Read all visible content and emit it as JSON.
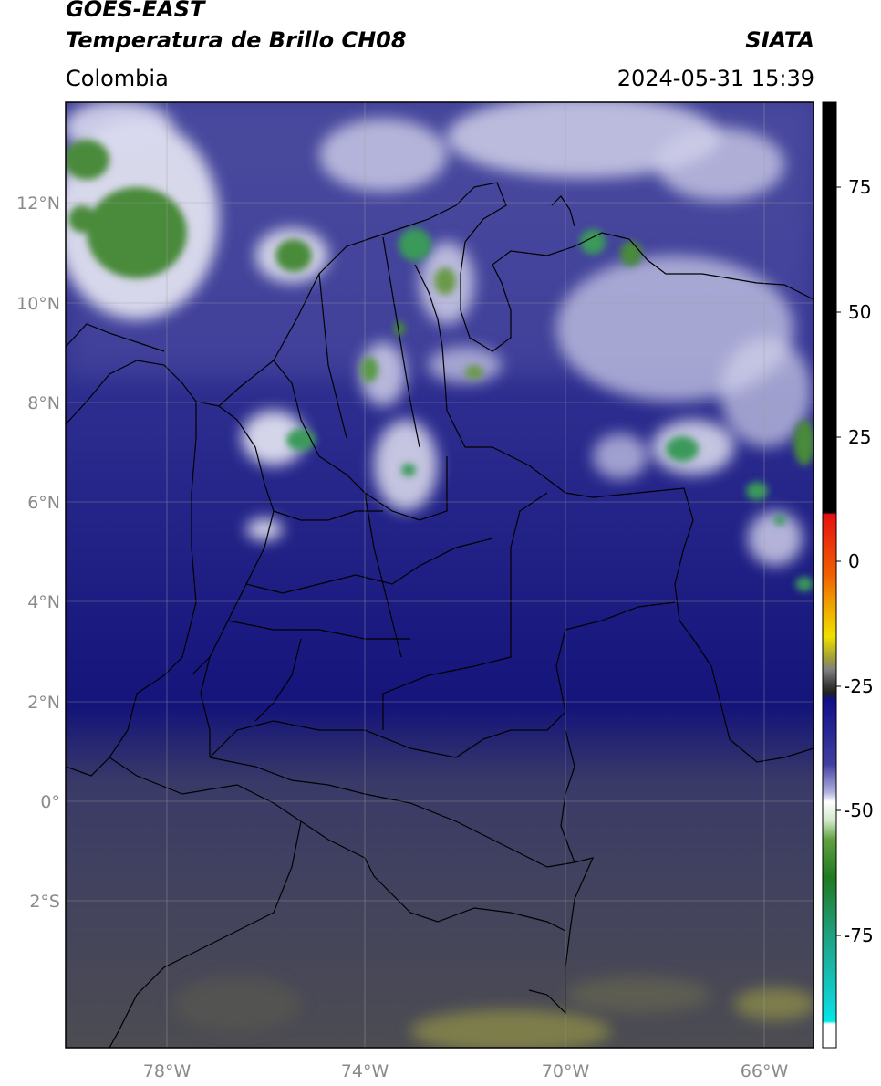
{
  "header": {
    "satellite": "GOES-EAST",
    "product": "Temperatura de Brillo CH08",
    "region": "Colombia",
    "agency": "SIATA",
    "datetime": "2024-05-31 15:39"
  },
  "map": {
    "lon_range": [
      -80,
      -64.8
    ],
    "lat_range": [
      -4.2,
      14.2
    ],
    "lon_ticks": [
      {
        "value": -78,
        "label": "78°W"
      },
      {
        "value": -74,
        "label": "74°W"
      },
      {
        "value": -70,
        "label": "70°W"
      },
      {
        "value": -66,
        "label": "66°W"
      }
    ],
    "lat_ticks": [
      {
        "value": 12,
        "label": "12°N"
      },
      {
        "value": 10,
        "label": "10°N"
      },
      {
        "value": 8,
        "label": "8°N"
      },
      {
        "value": 6,
        "label": "6°N"
      },
      {
        "value": 4,
        "label": "4°N"
      },
      {
        "value": 2,
        "label": "2°N"
      },
      {
        "value": 0,
        "label": "0°"
      },
      {
        "value": -2,
        "label": "2°S"
      }
    ]
  },
  "colorbar": {
    "range": [
      -100,
      90
    ],
    "ticks": [
      {
        "value": 75,
        "label": "75"
      },
      {
        "value": 50,
        "label": "50"
      },
      {
        "value": 25,
        "label": "25"
      },
      {
        "value": 0,
        "label": "0"
      },
      {
        "value": -25,
        "label": "-25"
      },
      {
        "value": -50,
        "label": "-50"
      },
      {
        "value": -75,
        "label": "-75"
      }
    ],
    "colors": {
      "warm_black": "#000000",
      "red": "#e01010",
      "orange": "#f08000",
      "yellow": "#f0e000",
      "olive": "#8a8a40",
      "gray": "#505050",
      "navy": "#12127a",
      "blue": "#4a4aa8",
      "white": "#ffffff",
      "green": "#3a8a2a",
      "teal": "#20b0a0",
      "cyan": "#00e0e0"
    }
  }
}
